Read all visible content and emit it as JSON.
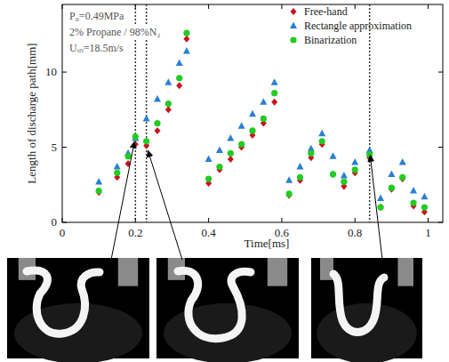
{
  "chart_data": {
    "type": "scatter",
    "xlabel": "Time[ms]",
    "ylabel": "Length of discharge path[mm]",
    "annotations": [
      "P₀=0.49MPa",
      "2% Propane / 98%N₂",
      "Uᵢₙ=18.5m/s"
    ],
    "x": [
      0.1,
      0.15,
      0.18,
      0.2,
      0.23,
      0.26,
      0.29,
      0.32,
      0.34,
      0.4,
      0.43,
      0.46,
      0.49,
      0.52,
      0.55,
      0.58,
      0.62,
      0.65,
      0.68,
      0.71,
      0.74,
      0.77,
      0.8,
      0.84,
      0.87,
      0.9,
      0.93,
      0.96,
      0.99
    ],
    "series": [
      {
        "name": "Free-hand",
        "color": "#c8141e",
        "marker": "diamond",
        "values": [
          2.0,
          3.0,
          3.9,
          5.2,
          5.1,
          6.1,
          7.5,
          9.1,
          12.2,
          2.6,
          3.5,
          4.2,
          5.0,
          5.8,
          6.6,
          8.0,
          1.8,
          2.8,
          4.3,
          5.2,
          3.2,
          2.4,
          3.3,
          4.3,
          1.0,
          2.2,
          2.9,
          1.1,
          0.7
        ]
      },
      {
        "name": "Rectangle approximation",
        "color": "#2a7fd4",
        "marker": "triangle",
        "values": [
          2.7,
          3.7,
          4.6,
          5.6,
          6.9,
          8.2,
          9.3,
          10.6,
          11.4,
          4.2,
          4.8,
          5.6,
          6.4,
          7.2,
          8.0,
          9.3,
          2.8,
          3.7,
          4.9,
          5.9,
          4.4,
          3.1,
          4.0,
          4.8,
          1.6,
          3.2,
          4.0,
          2.1,
          1.7
        ]
      },
      {
        "name": "Binarization",
        "color": "#22cc22",
        "marker": "circle",
        "values": [
          2.1,
          3.3,
          4.4,
          5.7,
          5.4,
          6.6,
          7.9,
          9.6,
          12.6,
          2.9,
          3.7,
          4.6,
          5.2,
          6.1,
          6.9,
          8.6,
          1.9,
          3.0,
          4.6,
          5.4,
          3.2,
          2.7,
          3.5,
          4.5,
          1.0,
          2.3,
          3.0,
          1.3,
          1.0
        ]
      }
    ],
    "xlim": [
      0,
      1.04
    ],
    "ylim": [
      0,
      14.5
    ],
    "xticks": [
      0,
      0.2,
      0.4,
      0.6,
      0.8,
      1
    ],
    "yticks": [
      0,
      5,
      10
    ],
    "vlines": [
      0.2,
      0.23,
      0.84
    ],
    "legend": "upper right"
  }
}
